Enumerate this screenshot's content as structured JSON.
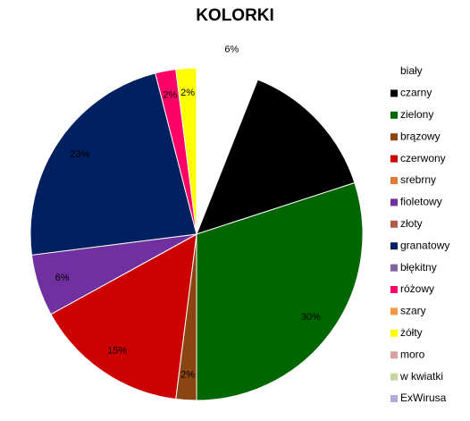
{
  "chart_data": {
    "type": "pie",
    "title": "KOLORKI",
    "categories": [
      "biały",
      "czarny",
      "zielony",
      "brązowy",
      "czerwony",
      "srebrny",
      "fioletowy",
      "złoty",
      "granatowy",
      "błękitny",
      "różowy",
      "szary",
      "żółty",
      "moro",
      "w kwiatki",
      "ExWirusa"
    ],
    "values": [
      6,
      14,
      30,
      2,
      15,
      0,
      6,
      0,
      23,
      0,
      2,
      0,
      2,
      0,
      0,
      0
    ],
    "value_labels": [
      "6%",
      null,
      "30%",
      "2%",
      "15%",
      null,
      "6%",
      null,
      "23%",
      null,
      "2%",
      null,
      "2%",
      null,
      null,
      null
    ],
    "colors": [
      "#ffffff",
      "#000000",
      "#006600",
      "#8b4513",
      "#cc0000",
      "#e07b39",
      "#7030a0",
      "#b05a4a",
      "#002060",
      "#8064a2",
      "#ff0066",
      "#f79646",
      "#ffff00",
      "#d9a0a0",
      "#c4d79b",
      "#b4aad4"
    ]
  }
}
